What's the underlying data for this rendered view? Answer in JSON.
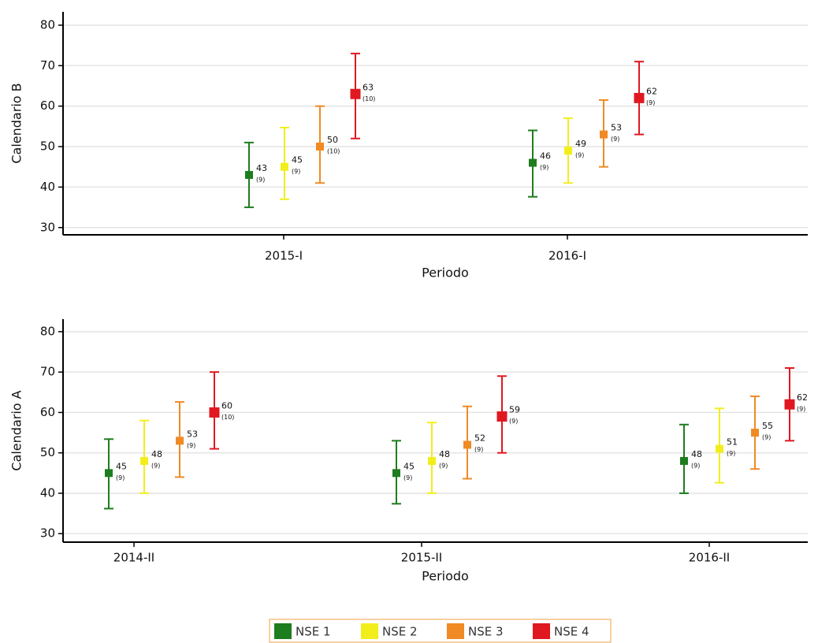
{
  "chart_data": [
    {
      "type": "errorbar",
      "ylabel": "Calendario B",
      "xlabel": "Periodo",
      "categories": [
        "2015-I",
        "2016-I"
      ],
      "ylim": [
        28.2,
        83.3
      ],
      "yticks": [
        30,
        40,
        50,
        60,
        70,
        80
      ],
      "grid": true,
      "series": [
        {
          "name": "NSE 1",
          "color": "#1e7d1e",
          "values": [
            43,
            46
          ],
          "low": [
            35,
            37.6
          ],
          "high": [
            51,
            54
          ],
          "annotations": [
            "(9)",
            "(9)"
          ]
        },
        {
          "name": "NSE 2",
          "color": "#f2ee1c",
          "values": [
            45,
            49
          ],
          "low": [
            37,
            41
          ],
          "high": [
            54.7,
            57
          ],
          "annotations": [
            "(9)",
            "(9)"
          ]
        },
        {
          "name": "NSE 3",
          "color": "#f08a24",
          "values": [
            50,
            53
          ],
          "low": [
            41,
            45
          ],
          "high": [
            60,
            61.5
          ],
          "annotations": [
            "(10)",
            "(9)"
          ]
        },
        {
          "name": "NSE 4",
          "color": "#e01820",
          "values": [
            63,
            62
          ],
          "low": [
            52,
            53
          ],
          "high": [
            73,
            71
          ],
          "annotations": [
            "(10)",
            "(9)"
          ]
        }
      ]
    },
    {
      "type": "errorbar",
      "ylabel": "Calendario A",
      "xlabel": "Periodo",
      "categories": [
        "2014-II",
        "2015-II",
        "2016-II"
      ],
      "ylim": [
        27.9,
        83.1
      ],
      "yticks": [
        30,
        40,
        50,
        60,
        70,
        80
      ],
      "grid": true,
      "series": [
        {
          "color": "#1e7d1e",
          "values": [
            45,
            45,
            48
          ],
          "low": [
            36.2,
            37.4,
            40
          ],
          "high": [
            53.4,
            53,
            57
          ],
          "annotations": [
            "(9)",
            "(9)",
            "(9)"
          ]
        },
        {
          "color": "#f2ee1c",
          "values": [
            48,
            48,
            51
          ],
          "low": [
            40,
            40,
            42.6
          ],
          "high": [
            58,
            57.5,
            61
          ],
          "annotations": [
            "(9)",
            "(9)",
            "(9)"
          ]
        },
        {
          "color": "#f08a24",
          "values": [
            53,
            52,
            55
          ],
          "low": [
            44,
            43.6,
            46
          ],
          "high": [
            62.6,
            61.5,
            64
          ],
          "annotations": [
            "(9)",
            "(9)",
            "(9)"
          ]
        },
        {
          "color": "#e01820",
          "values": [
            60,
            59,
            62
          ],
          "low": [
            51,
            50,
            53
          ],
          "high": [
            70,
            69,
            71
          ],
          "annotations": [
            "(10)",
            "(9)",
            "(9)"
          ]
        }
      ]
    }
  ]
}
